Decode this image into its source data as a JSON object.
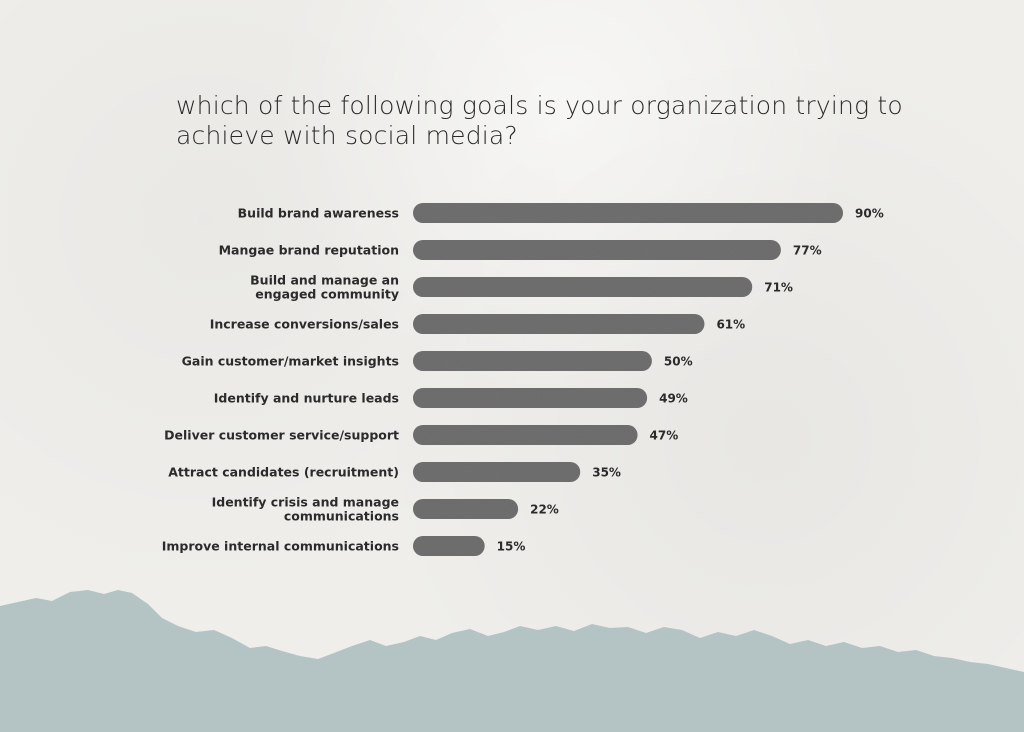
{
  "colors": {
    "background": "#efeeeb",
    "bar": "#6a6a6a",
    "text": "#2b2b2b",
    "footer_wave": "#b4c4c4"
  },
  "title": "which of the following goals is your organization trying to achieve with social media?",
  "chart_data": {
    "type": "bar",
    "orientation": "horizontal",
    "title": "which of the following goals is your organization trying to achieve with social media?",
    "categories": [
      [
        "Build brand awareness"
      ],
      [
        "Mangae brand reputation"
      ],
      [
        "Build and manage an",
        "engaged community"
      ],
      [
        "Increase conversions/sales"
      ],
      [
        "Gain customer/market insights"
      ],
      [
        "Identify and nurture leads"
      ],
      [
        "Deliver customer service/support"
      ],
      [
        "Attract candidates (recruitment)"
      ],
      [
        "Identify crisis and manage",
        "communications"
      ],
      [
        "Improve internal communications"
      ]
    ],
    "values": [
      90,
      77,
      71,
      61,
      50,
      49,
      47,
      35,
      22,
      15
    ],
    "value_labels": [
      "90%",
      "77%",
      "71%",
      "61%",
      "50%",
      "49%",
      "47%",
      "35%",
      "22%",
      "15%"
    ],
    "unit": "%",
    "xlim": [
      0,
      100
    ],
    "grid": false,
    "legend": "none"
  }
}
